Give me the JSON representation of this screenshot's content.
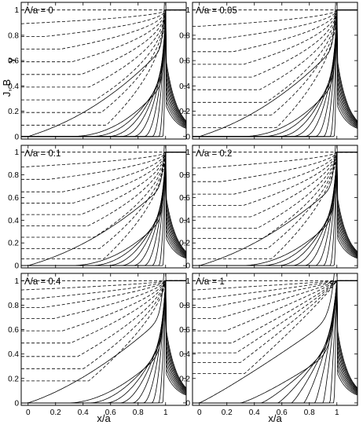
{
  "figure": {
    "ylabel": "J, B",
    "ylabel_sub": "y",
    "xlabel": "x/a"
  },
  "chart_data": {
    "type": "line",
    "description_note": "",
    "xlim": [
      -0.05,
      1.15
    ],
    "ylim": [
      -0.02,
      1.06
    ],
    "xticks": [
      0,
      0.2,
      0.4,
      0.6,
      0.8,
      1
    ],
    "xtick_labels": [
      "0",
      "0.2",
      "0.4",
      "0.6",
      "0.8",
      "1"
    ],
    "yticks": [
      0,
      0.2,
      0.4,
      0.6,
      0.8,
      1
    ],
    "ytick_labels": [
      "0",
      "0.2",
      "0.4",
      "0.6",
      "0.8",
      "1"
    ],
    "grid": false,
    "panels": [
      {
        "label": "Λ/a = 0",
        "lambda": 0,
        "field_profiles": [
          1.0,
          0.9,
          0.8,
          0.7,
          0.6,
          0.5,
          0.4,
          0.3,
          0.2,
          0.1
        ],
        "current_fronts": [
          0.0,
          0.3,
          0.45,
          0.57,
          0.67,
          0.76,
          0.84,
          0.9,
          0.95,
          0.98
        ]
      },
      {
        "label": "Λ/a = 0.05",
        "lambda": 0.05,
        "field_profiles": [
          1.0,
          0.88,
          0.78,
          0.68,
          0.58,
          0.48,
          0.38,
          0.28,
          0.18,
          0.08
        ],
        "current_fronts": [
          0.0,
          0.3,
          0.45,
          0.57,
          0.67,
          0.76,
          0.84,
          0.9,
          0.95,
          0.98
        ]
      },
      {
        "label": "Λ/a = 0.1",
        "lambda": 0.1,
        "field_profiles": [
          1.0,
          0.88,
          0.77,
          0.66,
          0.56,
          0.46,
          0.36,
          0.26,
          0.16,
          0.07
        ],
        "current_fronts": [
          0.0,
          0.3,
          0.45,
          0.57,
          0.67,
          0.76,
          0.84,
          0.9,
          0.95,
          0.98
        ]
      },
      {
        "label": "Λ/a = 0.2",
        "lambda": 0.2,
        "field_profiles": [
          1.0,
          0.87,
          0.75,
          0.64,
          0.54,
          0.44,
          0.34,
          0.25,
          0.16,
          0.07
        ],
        "current_fronts": [
          0.0,
          0.3,
          0.45,
          0.57,
          0.67,
          0.76,
          0.84,
          0.9,
          0.95,
          0.98
        ]
      },
      {
        "label": "Λ/a = 0.4",
        "lambda": 0.4,
        "field_profiles": [
          1.0,
          0.93,
          0.86,
          0.79,
          0.7,
          0.6,
          0.5,
          0.39,
          0.29,
          0.19
        ],
        "current_fronts": [
          0.0,
          0.3,
          0.45,
          0.57,
          0.67,
          0.76,
          0.84,
          0.9,
          0.95,
          0.98
        ]
      },
      {
        "label": "Λ/a = 1",
        "lambda": 1,
        "field_profiles": [
          1.0,
          0.93,
          0.86,
          0.79,
          0.7,
          0.6,
          0.5,
          0.42,
          0.34,
          0.25
        ],
        "current_fronts": [
          0.0,
          0.3,
          0.45,
          0.57,
          0.67,
          0.76,
          0.84,
          0.9,
          0.95,
          0.98
        ]
      }
    ],
    "series_styles": {
      "current_density": "solid",
      "magnetic_field": "dashed"
    }
  }
}
